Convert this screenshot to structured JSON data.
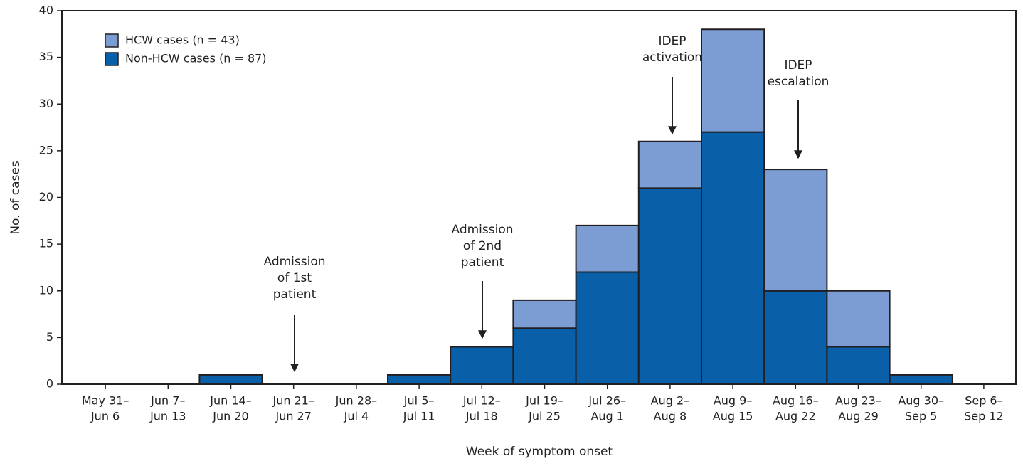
{
  "chart_data": {
    "type": "stacked-bar",
    "xlabel": "Week of symptom onset",
    "ylabel": "No. of cases",
    "categories": [
      [
        "May 31–",
        "Jun 6"
      ],
      [
        "Jun 7–",
        "Jun 13"
      ],
      [
        "Jun 14–",
        "Jun 20"
      ],
      [
        "Jun 21–",
        "Jun 27"
      ],
      [
        "Jun 28–",
        "Jul 4"
      ],
      [
        "Jul 5–",
        "Jul 11"
      ],
      [
        "Jul 12–",
        "Jul 18"
      ],
      [
        "Jul 19–",
        "Jul 25"
      ],
      [
        "Jul 26–",
        "Aug 1"
      ],
      [
        "Aug 2–",
        "Aug 8"
      ],
      [
        "Aug 9–",
        "Aug 15"
      ],
      [
        "Aug 16–",
        "Aug 22"
      ],
      [
        "Aug 23–",
        "Aug 29"
      ],
      [
        "Aug 30–",
        "Sep 5"
      ],
      [
        "Sep 6–",
        "Sep 12"
      ]
    ],
    "series": [
      {
        "name": "Non-HCW cases (n = 87)",
        "color": "#0a5fa9",
        "values": [
          0,
          0,
          1,
          0,
          0,
          1,
          4,
          6,
          12,
          21,
          27,
          10,
          4,
          1,
          0
        ]
      },
      {
        "name": "HCW cases (n = 43)",
        "color": "#7b9dd3",
        "values": [
          0,
          0,
          0,
          0,
          0,
          0,
          0,
          3,
          5,
          5,
          11,
          13,
          6,
          0,
          0
        ]
      }
    ],
    "ylim": [
      0,
      40
    ],
    "yticks": [
      0,
      5,
      10,
      15,
      20,
      25,
      30,
      35,
      40
    ],
    "legend": "upper left",
    "annotations": [
      [
        "Admission",
        "of 1st",
        "patient"
      ],
      [
        "Admission",
        "of 2nd",
        "patient"
      ],
      [
        "IDEP",
        "activation"
      ],
      [
        "IDEP",
        "escalation"
      ]
    ]
  }
}
